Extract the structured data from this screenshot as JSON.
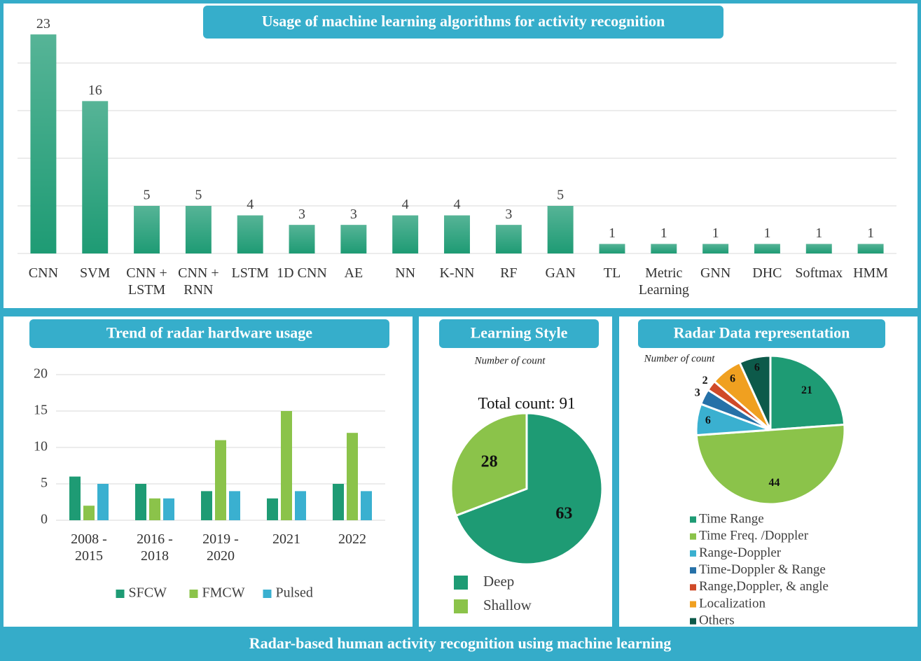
{
  "footer": "Radar-based human activity recognition using machine learning",
  "chart_data": [
    {
      "type": "bar",
      "title": "Usage of machine learning algorithms for activity recognition",
      "categories": [
        "CNN",
        "SVM",
        "CNN + LSTM",
        "CNN + RNN",
        "LSTM",
        "1D CNN",
        "AE",
        "NN",
        "K-NN",
        "RF",
        "GAN",
        "TL",
        "Metric Learning",
        "GNN",
        "DHC",
        "Softmax",
        "HMM"
      ],
      "values": [
        23,
        16,
        5,
        5,
        4,
        3,
        3,
        4,
        4,
        3,
        5,
        1,
        1,
        1,
        1,
        1,
        1
      ],
      "color": "#1e9b74",
      "ylim": [
        0,
        25
      ],
      "yticks": [
        0,
        5,
        10,
        15,
        20
      ],
      "grid": true
    },
    {
      "type": "grouped_bar",
      "title": "Trend of radar hardware usage",
      "categories": [
        "2008 - 2015",
        "2016 - 2018",
        "2019 - 2020",
        "2021",
        "2022"
      ],
      "series": [
        {
          "name": "SFCW",
          "color": "#1e9b74",
          "values": [
            6,
            5,
            4,
            3,
            5
          ]
        },
        {
          "name": "FMCW",
          "color": "#8bc34a",
          "values": [
            2,
            3,
            11,
            15,
            12
          ]
        },
        {
          "name": "Pulsed",
          "color": "#3ab0d0",
          "values": [
            5,
            3,
            4,
            4,
            4
          ]
        }
      ],
      "ylim": [
        0,
        20
      ],
      "yticks": [
        0,
        5,
        10,
        15,
        20
      ],
      "grid": true,
      "legend": "bottom"
    },
    {
      "type": "pie",
      "title": "Learning Style",
      "subtitle": "Number of count",
      "annotation": "Total count: 91",
      "categories": [
        "Deep",
        "Shallow"
      ],
      "values": [
        63,
        28
      ],
      "colors": [
        "#1e9b74",
        "#8bc34a"
      ]
    },
    {
      "type": "pie",
      "title": "Radar Data representation",
      "subtitle": "Number of count",
      "categories": [
        "Time Range",
        "Time Freq. /Doppler",
        "Range-Doppler",
        "Time-Doppler & Range",
        "Range,Doppler, & angle",
        "Localization",
        "Others"
      ],
      "values": [
        21,
        44,
        6,
        3,
        2,
        6,
        6
      ],
      "colors": [
        "#1e9b74",
        "#8bc34a",
        "#3ab0d0",
        "#2671a8",
        "#d04a28",
        "#f0a020",
        "#0d5a4a"
      ]
    }
  ]
}
